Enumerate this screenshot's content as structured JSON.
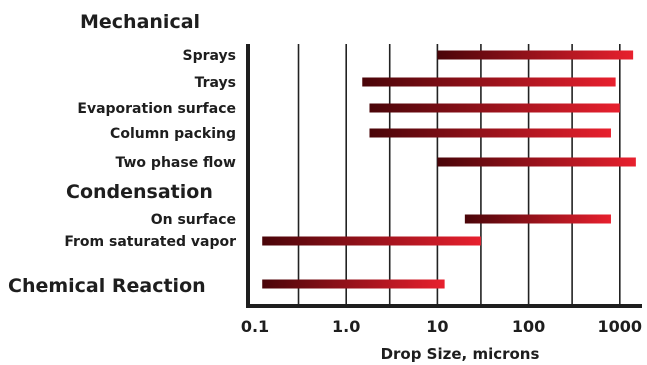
{
  "chart_data": {
    "type": "bar",
    "orientation": "horizontal-range",
    "x_scale": "log",
    "xlabel": "Drop Size, microns",
    "xlim": [
      0.1,
      1500
    ],
    "x_tick_labels": [
      "0.1",
      "1.0",
      "10",
      "100",
      "1000"
    ],
    "gridlines": [
      0.3,
      1,
      3,
      10,
      30,
      100,
      300,
      1000
    ],
    "bar_color_start": "#4a0509",
    "bar_color_end": "#e8202e",
    "groups": [
      {
        "name": "Mechanical",
        "items": [
          {
            "label": "Sprays",
            "min": 10,
            "max": 1400
          },
          {
            "label": "Trays",
            "min": 1.5,
            "max": 900
          },
          {
            "label": "Evaporation surface",
            "min": 1.8,
            "max": 1000
          },
          {
            "label": "Column packing",
            "min": 1.8,
            "max": 800
          },
          {
            "label": "Two phase flow",
            "min": 10,
            "max": 1500
          }
        ]
      },
      {
        "name": "Condensation",
        "items": [
          {
            "label": "On surface",
            "min": 20,
            "max": 800
          },
          {
            "label": "From saturated vapor",
            "min": 0.12,
            "max": 30
          }
        ]
      },
      {
        "name": "Chemical Reaction",
        "items": [
          {
            "label": "",
            "min": 0.12,
            "max": 12
          }
        ]
      }
    ]
  }
}
